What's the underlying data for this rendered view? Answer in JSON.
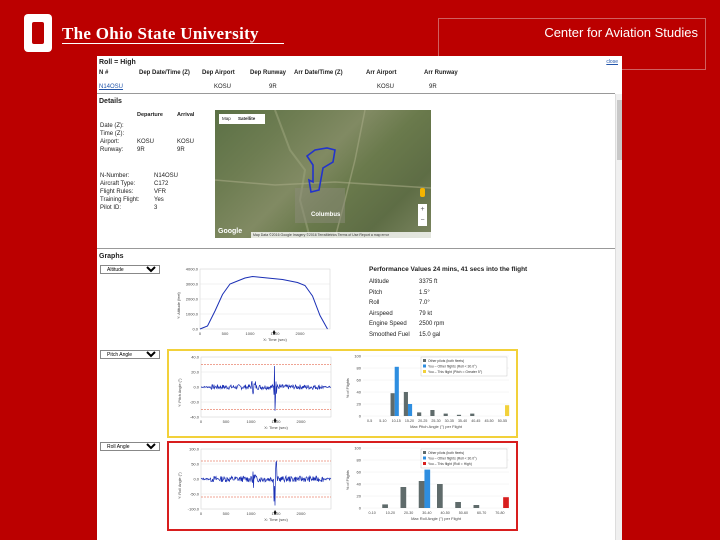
{
  "header": {
    "university": "The Ohio State University",
    "center": "Center for Aviation Studies"
  },
  "flight": {
    "title": "Roll = High",
    "close_label": "close",
    "columns": [
      "N #",
      "Dep Date/Time (Z)",
      "Dep Airport",
      "Dep Runway",
      "Arr Date/Time (Z)",
      "Arr Airport",
      "Arr Runway"
    ],
    "row": {
      "n": "N14OSU",
      "dep_date": "",
      "dep_airport": "KOSU",
      "dep_runway": "9R",
      "arr_date": "",
      "arr_airport": "KOSU",
      "arr_runway": "9R"
    }
  },
  "details": {
    "heading": "Details",
    "departure_label": "Departure",
    "arrival_label": "Arrival",
    "labels": [
      "Date (Z):",
      "Time (Z):",
      "Airport:",
      "Runway:"
    ],
    "departure": [
      "",
      "",
      "KOSU",
      "9R"
    ],
    "arrival": [
      "",
      "",
      "KOSU",
      "9R"
    ],
    "aircraft_labels": [
      "N-Number:",
      "Aircraft Type:",
      "Flight Rules:",
      "Training Flight:",
      "Pilot ID:"
    ],
    "aircraft_values": [
      "N14OSU",
      "C172",
      "VFR",
      "Yes",
      "3"
    ]
  },
  "map": {
    "tab_map": "Map",
    "tab_satellite": "Satellite",
    "city": "Columbus",
    "google": "Google",
    "footer": "Map Data ©2016 Google Imagery ©2016 TerraMetrics   Terms of Use   Report a map error",
    "zoom_in": "+",
    "zoom_out": "−"
  },
  "graphs": {
    "heading": "Graphs",
    "selects": [
      "Altitude",
      "Pitch Angle",
      "Roll Angle"
    ]
  },
  "performance": {
    "title": "Performance Values 24 mins, 41 secs into the flight",
    "rows": [
      {
        "label": "Altitude",
        "value": "3375 ft"
      },
      {
        "label": "Pitch",
        "value": "1.5°"
      },
      {
        "label": "Roll",
        "value": "7.0°"
      },
      {
        "label": "Airspeed",
        "value": "79 kt"
      },
      {
        "label": "Engine Speed",
        "value": "2500 rpm"
      },
      {
        "label": "Smoothed Fuel",
        "value": "15.0 gal"
      }
    ]
  },
  "charts": {
    "alt_ylabel": "Y: Altitude (feet)",
    "alt_xlabel": "X: Time (sec)",
    "alt_yticks": [
      "4000.0",
      "3000.0",
      "2000.0",
      "1000.0",
      "0.0"
    ],
    "time_ticks": [
      "0",
      "500",
      "1000",
      "1500",
      "2000"
    ],
    "pitch_ylabel": "Y: Pitch Angle (°)",
    "pitch_yticks": [
      "40.0",
      "20.0",
      "0.0",
      "-20.0",
      "-40.0"
    ],
    "roll_ylabel": "Y: Roll Angle (°)",
    "roll_yticks": [
      "100.0",
      "50.0",
      "0.0",
      "-50.0",
      "-100.0"
    ],
    "pct_ylabel": "% of Flights",
    "pct_yticks": [
      "100",
      "80",
      "60",
      "40",
      "20",
      "0"
    ],
    "pitch_hist_xlabel": "Max Pitch Angle (°) per Flight",
    "roll_hist_xlabel": "Max Roll Angle (°) per Flight",
    "pitch_legend": [
      "Other pilots (both fleets)",
      "You – Other flights (Roll < 30.0°)",
      "You – This flight (Pitch = Greater 5°)"
    ],
    "roll_legend": [
      "Other pilots (both fleets)",
      "You – Other flights (Roll < 30.0°)",
      "You – This flight (Roll = High)"
    ],
    "pitch_bins": [
      "0-5",
      "5-10",
      "10-15",
      "15-20",
      "20-25",
      "25-30",
      "30-35",
      "35-40",
      "40-45",
      "45-50",
      "50-55"
    ],
    "roll_bins": [
      "0-10",
      "10-20",
      "20-30",
      "30-40",
      "40-50",
      "50-60",
      "60-70",
      "70-80"
    ]
  },
  "chart_data": [
    {
      "type": "line",
      "ylabel": "Y: Altitude (feet)",
      "xlabel": "X: Time (sec)",
      "x": [
        0,
        150,
        300,
        450,
        600,
        750,
        900,
        1050,
        1200,
        1350,
        1500,
        1650,
        1800,
        1950,
        2100,
        2250,
        2400,
        2550
      ],
      "y": [
        0,
        200,
        1200,
        2300,
        3000,
        3200,
        3400,
        3500,
        3450,
        3400,
        3350,
        3300,
        3200,
        3100,
        2900,
        2200,
        900,
        0
      ],
      "ylim": [
        0,
        4000
      ],
      "xlim": [
        0,
        2600
      ]
    },
    {
      "type": "line",
      "ylabel": "Y: Pitch Angle (°)",
      "xlabel": "X: Time (sec)",
      "ylim": [
        -40,
        40
      ],
      "xlim": [
        0,
        2600
      ],
      "limit_lines": [
        30,
        -30
      ]
    },
    {
      "type": "bar",
      "xlabel": "Max Pitch Angle (°) per Flight",
      "ylabel": "% of Flights",
      "ylim": [
        0,
        100
      ],
      "categories": [
        "0-5",
        "5-10",
        "10-15",
        "15-20",
        "20-25",
        "25-30",
        "30-35",
        "35-40",
        "40-45",
        "45-50",
        "50-55"
      ],
      "series": [
        {
          "name": "Other pilots (both fleets)",
          "values": [
            0,
            0,
            38,
            40,
            6,
            10,
            4,
            2,
            4,
            0,
            0
          ]
        },
        {
          "name": "You – Other flights (Roll < 30.0°)",
          "values": [
            0,
            0,
            82,
            20,
            0,
            0,
            0,
            0,
            0,
            0,
            0
          ]
        },
        {
          "name": "You – This flight (Pitch = Greater 5°)",
          "values": [
            0,
            0,
            0,
            0,
            0,
            0,
            0,
            0,
            0,
            0,
            18
          ]
        }
      ]
    },
    {
      "type": "line",
      "ylabel": "Y: Roll Angle (°)",
      "xlabel": "X: Time (sec)",
      "ylim": [
        -100,
        100
      ],
      "xlim": [
        0,
        2600
      ],
      "limit_lines": [
        60,
        -60
      ]
    },
    {
      "type": "bar",
      "xlabel": "Max Roll Angle (°) per Flight",
      "ylabel": "% of Flights",
      "ylim": [
        0,
        100
      ],
      "categories": [
        "0-10",
        "10-20",
        "20-30",
        "30-40",
        "40-50",
        "50-60",
        "60-70",
        "70-80"
      ],
      "series": [
        {
          "name": "Other pilots (both fleets)",
          "values": [
            0,
            6,
            35,
            45,
            40,
            10,
            5,
            0
          ]
        },
        {
          "name": "You – Other flights (Roll < 30.0°)",
          "values": [
            0,
            0,
            0,
            64,
            0,
            0,
            0,
            0
          ]
        },
        {
          "name": "You – This flight (Roll = High)",
          "values": [
            0,
            0,
            0,
            0,
            0,
            0,
            0,
            18
          ]
        }
      ]
    }
  ],
  "colors": {
    "osu_red": "#bb0000",
    "other_pilots": "#5f6b6b",
    "you_other": "#2e8ee0",
    "this_flight_pitch": "#f2d13a",
    "this_flight_roll": "#d81e1e",
    "line": "#1a2fb5"
  }
}
